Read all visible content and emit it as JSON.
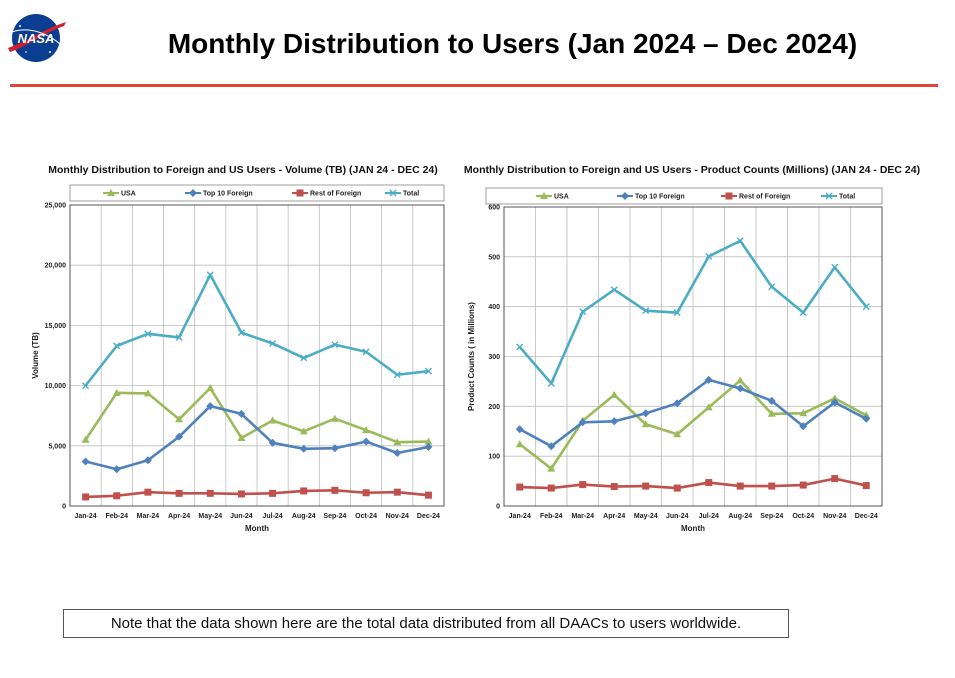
{
  "page": {
    "title": "Monthly Distribution to Users (Jan 2024 – Dec 2024)",
    "logo_text": "NASA",
    "note": "Note that the data shown here are the total data distributed from all DAACs to users worldwide."
  },
  "colors": {
    "USA": "#9bbb59",
    "Top 10 Foreign": "#4f81bd",
    "Rest of Foreign": "#c0504d",
    "Total": "#4bacc6",
    "divider": "#e4433a"
  },
  "chart_data": [
    {
      "type": "line",
      "title": "Monthly Distribution to Foreign and US Users - Volume  (TB) (JAN 24 - DEC 24)",
      "xlabel": "Month",
      "ylabel": "Volume (TB)",
      "ylim": [
        0,
        25000
      ],
      "yticks": [
        0,
        5000,
        10000,
        15000,
        20000,
        25000
      ],
      "ytick_labels": [
        "0",
        "5,000",
        "10,000",
        "15,000",
        "20,000",
        "25,000"
      ],
      "grid": true,
      "legend_position": "top",
      "categories": [
        "Jan-24",
        "Feb-24",
        "Mar-24",
        "Apr-24",
        "May-24",
        "Jun-24",
        "Jul-24",
        "Aug-24",
        "Sep-24",
        "Oct-24",
        "Nov-24",
        "Dec-24"
      ],
      "series": [
        {
          "name": "USA",
          "marker": "triangle",
          "values": [
            5500,
            9400,
            9350,
            7200,
            9800,
            5650,
            7100,
            6200,
            7250,
            6300,
            5300,
            5350
          ]
        },
        {
          "name": "Top 10 Foreign",
          "marker": "diamond",
          "values": [
            3700,
            3050,
            3800,
            5750,
            8300,
            7650,
            5250,
            4750,
            4800,
            5350,
            4400,
            4900
          ]
        },
        {
          "name": "Rest of Foreign",
          "marker": "square",
          "values": [
            750,
            850,
            1150,
            1050,
            1050,
            1000,
            1050,
            1250,
            1300,
            1100,
            1150,
            900
          ]
        },
        {
          "name": "Total",
          "marker": "x",
          "values": [
            10000,
            13300,
            14300,
            14000,
            19200,
            14400,
            13500,
            12300,
            13400,
            12800,
            10900,
            11200
          ]
        }
      ]
    },
    {
      "type": "line",
      "title": "Monthly Distribution to Foreign and US Users - Product Counts (Millions) (JAN 24 - DEC 24)",
      "xlabel": "Month",
      "ylabel": "Product Counts ( in Millions)",
      "ylim": [
        0,
        600
      ],
      "yticks": [
        0,
        100,
        200,
        300,
        400,
        500,
        600
      ],
      "ytick_labels": [
        "0",
        "100",
        "200",
        "300",
        "400",
        "500",
        "600"
      ],
      "grid": true,
      "legend_position": "top",
      "categories": [
        "Jan-24",
        "Feb-24",
        "Mar-24",
        "Apr-24",
        "May-24",
        "Jun-24",
        "Jul-24",
        "Aug-24",
        "Sep-24",
        "Oct-24",
        "Nov-24",
        "Dec-24"
      ],
      "series": [
        {
          "name": "USA",
          "marker": "triangle",
          "values": [
            124,
            75,
            171,
            223,
            164,
            144,
            198,
            252,
            185,
            186,
            216,
            182
          ]
        },
        {
          "name": "Top 10 Foreign",
          "marker": "diamond",
          "values": [
            154,
            120,
            168,
            170,
            186,
            206,
            253,
            236,
            211,
            160,
            208,
            175
          ]
        },
        {
          "name": "Rest of Foreign",
          "marker": "square",
          "values": [
            38,
            36,
            43,
            39,
            40,
            36,
            47,
            40,
            40,
            42,
            55,
            41
          ]
        },
        {
          "name": "Total",
          "marker": "x",
          "values": [
            319,
            246,
            390,
            434,
            392,
            388,
            501,
            532,
            440,
            388,
            479,
            400
          ]
        }
      ]
    }
  ]
}
